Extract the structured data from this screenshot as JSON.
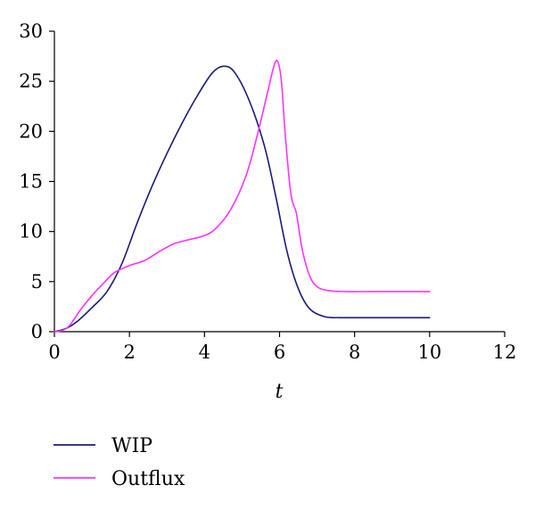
{
  "chart_data": {
    "type": "line",
    "xlabel": "t",
    "ylabel": "",
    "xlim": [
      0,
      12
    ],
    "ylim": [
      0,
      30
    ],
    "x_ticks": [
      0,
      2,
      4,
      6,
      8,
      10,
      12
    ],
    "y_ticks": [
      0,
      5,
      10,
      15,
      20,
      25,
      30
    ],
    "grid": false,
    "legend_position": "bottom-left",
    "series": [
      {
        "name": "WIP",
        "color": "#1a1a7a",
        "x": [
          0,
          0.3,
          0.6,
          1.0,
          1.4,
          1.8,
          2.2,
          2.6,
          3.0,
          3.4,
          3.8,
          4.2,
          4.5,
          4.8,
          5.2,
          5.6,
          5.9,
          6.2,
          6.5,
          6.8,
          7.2,
          7.6,
          8.0,
          9.0,
          10.0
        ],
        "y": [
          0,
          0.3,
          1.0,
          2.4,
          4.0,
          6.8,
          10.8,
          14.5,
          17.8,
          20.8,
          23.5,
          25.8,
          26.5,
          25.9,
          23.0,
          18.5,
          13.5,
          8.0,
          4.3,
          2.3,
          1.5,
          1.4,
          1.4,
          1.4,
          1.4
        ]
      },
      {
        "name": "Outflux",
        "color": "#ff33ff",
        "x": [
          0,
          0.2,
          0.4,
          0.7,
          1.0,
          1.3,
          1.6,
          2.0,
          2.4,
          2.8,
          3.2,
          3.6,
          4.0,
          4.3,
          4.7,
          5.1,
          5.4,
          5.7,
          5.85,
          5.95,
          6.05,
          6.15,
          6.3,
          6.45,
          6.6,
          6.8,
          7.0,
          7.3,
          7.8,
          8.5,
          10.0
        ],
        "y": [
          0,
          0.1,
          0.6,
          2.2,
          3.6,
          4.8,
          5.9,
          6.6,
          7.1,
          8.0,
          8.8,
          9.2,
          9.6,
          10.3,
          12.2,
          15.5,
          19.5,
          24.2,
          26.5,
          27.0,
          25.0,
          19.8,
          13.8,
          11.8,
          8.3,
          5.6,
          4.5,
          4.1,
          4.0,
          4.0,
          4.0
        ]
      }
    ]
  }
}
